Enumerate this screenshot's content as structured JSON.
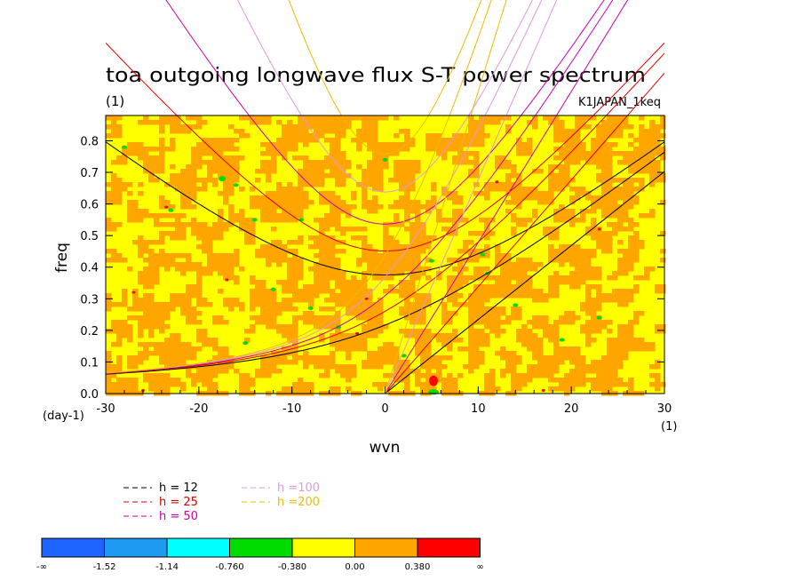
{
  "chart_data": {
    "type": "heatmap",
    "title": "toa outgoing longwave flux S-T power spectrum",
    "subtitle_left": "(1)",
    "subtitle_right": "K1JAPAN_1keq",
    "xlabel": "wvn",
    "ylabel": "freq",
    "x_unit": "(1)",
    "y_unit": "(day-1)",
    "xlim": [
      -30,
      30
    ],
    "ylim": [
      0,
      0.88
    ],
    "x_ticks": [
      "-30",
      "-20",
      "-10",
      "0",
      "10",
      "20",
      "30"
    ],
    "x_tick_values": [
      -30,
      -20,
      -10,
      0,
      10,
      20,
      30
    ],
    "y_ticks": [
      "0.0",
      "0.1",
      "0.2",
      "0.3",
      "0.4",
      "0.5",
      "0.6",
      "0.7",
      "0.8"
    ],
    "y_tick_values": [
      0,
      0.1,
      0.2,
      0.3,
      0.4,
      0.5,
      0.6,
      0.7,
      0.8
    ],
    "dispersion_curves": [
      {
        "name": "h = 12",
        "h": 12,
        "color": "#000000"
      },
      {
        "name": "h = 25",
        "h": 25,
        "color": "#dd0000"
      },
      {
        "name": "h = 50",
        "h": 50,
        "color": "#cc00aa"
      },
      {
        "name": "h =100",
        "h": 100,
        "color": "#dd99dd"
      },
      {
        "name": "h =200",
        "h": 200,
        "color": "#eebb00"
      }
    ],
    "colorbar": {
      "labels": [
        "-∞",
        "-1.52",
        "-1.14",
        "-0.760",
        "-0.380",
        "0.00",
        "0.380",
        "∞"
      ],
      "colors": [
        "#1e64ff",
        "#1e9bf0",
        "#00ffff",
        "#00dc00",
        "#ffff00",
        "#ffa500",
        "#ff0000"
      ]
    },
    "field_levels": {
      "dominant": [
        "0.00 to 0.380",
        "-0.380 to 0.00"
      ],
      "sparse": [
        "-0.760 to -0.380",
        "> 0.380"
      ]
    }
  }
}
